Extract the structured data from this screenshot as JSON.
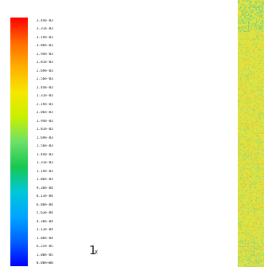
{
  "legend": {
    "gradient": [
      "#ff0000",
      "#ff6a00",
      "#ffb000",
      "#f7e600",
      "#c8f000",
      "#6de06a",
      "#17c84f",
      "#00c8d8",
      "#00a6ff",
      "#0060ff",
      "#0000ff"
    ],
    "labels": [
      "3.44e-03",
      "3.31e-03",
      "3.19e-03",
      "3.06e-03",
      "2.94e-03",
      "2.81e-03",
      "2.69e-03",
      "2.56e-03",
      "2.44e-03",
      "2.31e-03",
      "2.19e-03",
      "2.06e-03",
      "1.94e-03",
      "1.81e-03",
      "1.69e-03",
      "1.56e-03",
      "1.44e-03",
      "1.31e-03",
      "1.19e-03",
      "1.06e-03",
      "9.38e-04",
      "8.13e-04",
      "6.88e-04",
      "5.63e-04",
      "4.38e-04",
      "3.13e-04",
      "1.88e-04",
      "6.25e-05",
      "1.00e-05",
      "0.00e+00"
    ]
  },
  "axis": {
    "glyph": "1",
    "sub": "x"
  },
  "field": {
    "colors": [
      "#d8e83a",
      "#e6d62a",
      "#b8e04a",
      "#f0c020",
      "#c8e850",
      "#a8d860",
      "#e8e040",
      "#ffd020",
      "#9ed070"
    ]
  }
}
